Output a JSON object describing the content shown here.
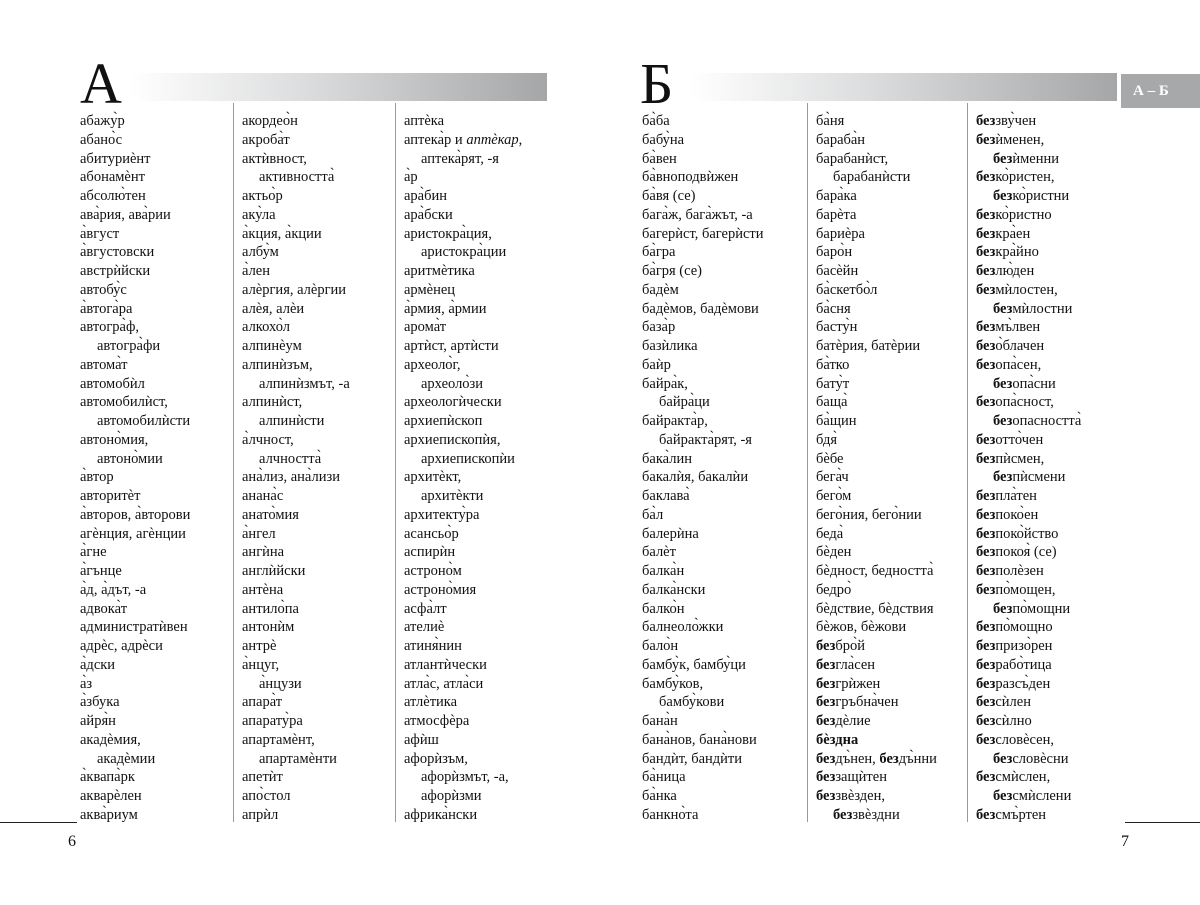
{
  "left_page": {
    "letter": "А",
    "page_number": "6",
    "columns": [
      {
        "lines": [
          "абажу̀р",
          "абано̀с",
          "абитуриѐнт",
          "абонамѐнт",
          "абсолю̀тен",
          "ава̀рия, ава̀рии",
          "а̀вгуст",
          "а̀вгустовски",
          "австрѝйски",
          "автобу̀с",
          "а̀втога̀ра",
          "автогра̀ф,",
          {
            "indent": true,
            "segs": [
              "автогра̀фи"
            ]
          },
          "автома̀т",
          "автомобѝл",
          "автомобилѝст,",
          {
            "indent": true,
            "segs": [
              "автомобилѝсти"
            ]
          },
          "автоно̀мия,",
          {
            "indent": true,
            "segs": [
              "автоно̀мии"
            ]
          },
          "а̀втор",
          "авторитѐт",
          "а̀второв, а̀второви",
          "агѐнция, агѐнции",
          "а̀гне",
          "а̀гънце",
          "а̀д, а̀дът, -а",
          "адвока̀т",
          "администратѝвен",
          "адрѐс, адрѐси",
          "а̀дски",
          "а̀з",
          "а̀збука",
          "айря̀н",
          "акадѐмия,",
          {
            "indent": true,
            "segs": [
              "акадѐмии"
            ]
          },
          "а̀квапа̀рк",
          "акварѐлен",
          "аква̀риум"
        ]
      },
      {
        "lines": [
          "акордео̀н",
          "акроба̀т",
          "актѝвност,",
          {
            "indent": true,
            "segs": [
              "активността̀"
            ]
          },
          "актьо̀р",
          "аку̀ла",
          "а̀кция, а̀кции",
          "албу̀м",
          "а̀лен",
          "алѐргия, алѐргии",
          "алѐя, алѐи",
          "алкохо̀л",
          "алпинѐум",
          "алпинѝзъм,",
          {
            "indent": true,
            "segs": [
              "алпинѝзмът, -а"
            ]
          },
          "алпинѝст,",
          {
            "indent": true,
            "segs": [
              "алпинѝсти"
            ]
          },
          "а̀лчност,",
          {
            "indent": true,
            "segs": [
              "алчността̀"
            ]
          },
          "ана̀лиз, ана̀лизи",
          "анана̀с",
          "анато̀мия",
          "а̀нгел",
          "ангѝна",
          "англѝйски",
          "антѐна",
          "антило̀па",
          "антонѝм",
          "антрѐ",
          "а̀нцуг,",
          {
            "indent": true,
            "segs": [
              "а̀нцузи"
            ]
          },
          "апара̀т",
          "апарату̀ра",
          "апартамѐнт,",
          {
            "indent": true,
            "segs": [
              "апартамѐнти"
            ]
          },
          "апетѝт",
          "апо̀стол",
          "апрѝл"
        ]
      },
      {
        "lines": [
          "аптѐка",
          {
            "segs": [
              "аптека̀р и ",
              {
                "i": "аптѐкар"
              },
              ","
            ]
          },
          {
            "indent": true,
            "segs": [
              "аптека̀рят, -я"
            ]
          },
          "а̀р",
          "ара̀бин",
          "ара̀бски",
          "аристокра̀ция,",
          {
            "indent": true,
            "segs": [
              "аристокра̀ции"
            ]
          },
          "аритмѐтика",
          "армѐнец",
          "а̀рмия, а̀рмии",
          "арома̀т",
          "артѝст, артѝсти",
          "археоло̀г,",
          {
            "indent": true,
            "segs": [
              "археоло̀зи"
            ]
          },
          "археологѝчески",
          "архиепѝскоп",
          "архиепископѝя,",
          {
            "indent": true,
            "segs": [
              "архиепископѝи"
            ]
          },
          "архитѐкт,",
          {
            "indent": true,
            "segs": [
              "архитѐкти"
            ]
          },
          "архитекту̀ра",
          "асансьо̀р",
          "аспирѝн",
          "астроно̀м",
          "астроно̀мия",
          "асфа̀лт",
          "ателиѐ",
          "атиня̀нин",
          "атлантѝчески",
          "атла̀с, атла̀си",
          "атлѐтика",
          "атмосфѐра",
          "афѝш",
          "афорѝзъм,",
          {
            "indent": true,
            "segs": [
              "афорѝзмът, -а,"
            ]
          },
          {
            "indent": true,
            "segs": [
              "афорѝзми"
            ]
          },
          "африка̀нски"
        ]
      }
    ]
  },
  "right_page": {
    "letter": "Б",
    "page_number": "7",
    "section_tab": "А – Б",
    "columns": [
      {
        "lines": [
          "ба̀ба",
          "бабу̀на",
          "ба̀вен",
          "ба̀вноподвѝжен",
          "ба̀вя (се)",
          "бага̀ж, бага̀жът, -а",
          "багерѝст, багерѝсти",
          "ба̀гра",
          "ба̀гря (се)",
          "бадѐм",
          "бадѐмов, бадѐмови",
          "база̀р",
          "базѝлика",
          "баѝр",
          "байра̀к,",
          {
            "indent": true,
            "segs": [
              "байра̀ци"
            ]
          },
          "байракта̀р,",
          {
            "indent": true,
            "segs": [
              "байракта̀рят, -я"
            ]
          },
          "бака̀лин",
          "бакалѝя, бакалѝи",
          "баклава̀",
          "ба̀л",
          "балерѝна",
          "балѐт",
          "балка̀н",
          "балка̀нски",
          "балко̀н",
          "балнеоло̀жки",
          "бало̀н",
          "бамбу̀к, бамбу̀ци",
          "бамбу̀ков,",
          {
            "indent": true,
            "segs": [
              "бамбу̀кови"
            ]
          },
          "бана̀н",
          "бана̀нов, бана̀нови",
          "бандѝт, бандѝти",
          "ба̀ница",
          "ба̀нка",
          "банкно̀та"
        ]
      },
      {
        "lines": [
          "ба̀ня",
          "бараба̀н",
          "барабанѝст,",
          {
            "indent": true,
            "segs": [
              "барабанѝсти"
            ]
          },
          "бара̀ка",
          "барѐта",
          "бариѐра",
          "баро̀н",
          "басѐйн",
          "ба̀скетбо̀л",
          "ба̀сня",
          "басту̀н",
          "батѐрия, батѐрии",
          "ба̀тко",
          "бату̀т",
          "баща̀",
          "ба̀щин",
          "бдя̀",
          "бѐбе",
          "бега̀ч",
          "бего̀м",
          "бего̀ния, бего̀нии",
          "беда̀",
          "бѐден",
          "бѐдност, бедността̀",
          "бедро̀",
          "бѐдствие, бѐдствия",
          "бѐжов, бѐжови",
          {
            "segs": [
              {
                "b": "без"
              },
              "бро̀й"
            ]
          },
          {
            "segs": [
              {
                "b": "без"
              },
              "гла̀сен"
            ]
          },
          {
            "segs": [
              {
                "b": "без"
              },
              "грѝжен"
            ]
          },
          {
            "segs": [
              {
                "b": "без"
              },
              "гръбна̀чен"
            ]
          },
          {
            "segs": [
              {
                "b": "без"
              },
              "дѐлие"
            ]
          },
          {
            "segs": [
              {
                "b": "бѐздна"
              }
            ]
          },
          {
            "segs": [
              {
                "b": "без"
              },
              "дъ̀нен, ",
              {
                "b": "без"
              },
              "дъ̀нни"
            ]
          },
          {
            "segs": [
              {
                "b": "без"
              },
              "защѝтен"
            ]
          },
          {
            "segs": [
              {
                "b": "без"
              },
              "звѐзден,"
            ]
          },
          {
            "indent": true,
            "segs": [
              {
                "b": "без"
              },
              "звѐздни"
            ]
          }
        ]
      },
      {
        "lines": [
          {
            "segs": [
              {
                "b": "без"
              },
              "зву̀чен"
            ]
          },
          {
            "segs": [
              {
                "b": "без"
              },
              "ѝменен,"
            ]
          },
          {
            "indent": true,
            "segs": [
              {
                "b": "без"
              },
              "ѝменни"
            ]
          },
          {
            "segs": [
              {
                "b": "без"
              },
              "ко̀ристен,"
            ]
          },
          {
            "indent": true,
            "segs": [
              {
                "b": "без"
              },
              "ко̀ристни"
            ]
          },
          {
            "segs": [
              {
                "b": "без"
              },
              "ко̀ристно"
            ]
          },
          {
            "segs": [
              {
                "b": "без"
              },
              "кра̀ен"
            ]
          },
          {
            "segs": [
              {
                "b": "без"
              },
              "кра̀йно"
            ]
          },
          {
            "segs": [
              {
                "b": "без"
              },
              "лю̀ден"
            ]
          },
          {
            "segs": [
              {
                "b": "без"
              },
              "мѝлостен,"
            ]
          },
          {
            "indent": true,
            "segs": [
              {
                "b": "без"
              },
              "мѝлостни"
            ]
          },
          {
            "segs": [
              {
                "b": "без"
              },
              "мъ̀лвен"
            ]
          },
          {
            "segs": [
              {
                "b": "без"
              },
              "о̀блачен"
            ]
          },
          {
            "segs": [
              {
                "b": "без"
              },
              "опа̀сен,"
            ]
          },
          {
            "indent": true,
            "segs": [
              {
                "b": "без"
              },
              "опа̀сни"
            ]
          },
          {
            "segs": [
              {
                "b": "без"
              },
              "опа̀сност,"
            ]
          },
          {
            "indent": true,
            "segs": [
              {
                "b": "без"
              },
              "опасността̀"
            ]
          },
          {
            "segs": [
              {
                "b": "без"
              },
              "отто̀чен"
            ]
          },
          {
            "segs": [
              {
                "b": "без"
              },
              "пѝсмен,"
            ]
          },
          {
            "indent": true,
            "segs": [
              {
                "b": "без"
              },
              "пѝсмени"
            ]
          },
          {
            "segs": [
              {
                "b": "без"
              },
              "пла̀тен"
            ]
          },
          {
            "segs": [
              {
                "b": "без"
              },
              "поко̀ен"
            ]
          },
          {
            "segs": [
              {
                "b": "без"
              },
              "поко̀йство"
            ]
          },
          {
            "segs": [
              {
                "b": "без"
              },
              "покоя̀ (се)"
            ]
          },
          {
            "segs": [
              {
                "b": "без"
              },
              "полѐзен"
            ]
          },
          {
            "segs": [
              {
                "b": "без"
              },
              "по̀мощен,"
            ]
          },
          {
            "indent": true,
            "segs": [
              {
                "b": "без"
              },
              "по̀мощни"
            ]
          },
          {
            "segs": [
              {
                "b": "без"
              },
              "по̀мощно"
            ]
          },
          {
            "segs": [
              {
                "b": "без"
              },
              "призо̀рен"
            ]
          },
          {
            "segs": [
              {
                "b": "без"
              },
              "рабо̀тица"
            ]
          },
          {
            "segs": [
              {
                "b": "без"
              },
              "разсъ̀ден"
            ]
          },
          {
            "segs": [
              {
                "b": "без"
              },
              "сѝлен"
            ]
          },
          {
            "segs": [
              {
                "b": "без"
              },
              "сѝлно"
            ]
          },
          {
            "segs": [
              {
                "b": "без"
              },
              "словѐсен,"
            ]
          },
          {
            "indent": true,
            "segs": [
              {
                "b": "без"
              },
              "словѐсни"
            ]
          },
          {
            "segs": [
              {
                "b": "без"
              },
              "смѝслен,"
            ]
          },
          {
            "indent": true,
            "segs": [
              {
                "b": "без"
              },
              "смѝслени"
            ]
          },
          {
            "segs": [
              {
                "b": "без"
              },
              "смъ̀ртен"
            ]
          }
        ]
      }
    ]
  },
  "colors": {
    "header_bar_end": "#a5a6a8",
    "tab_bg": "#a7a8aa",
    "tab_text": "#ffffff",
    "divider": "#9a9a9a"
  }
}
